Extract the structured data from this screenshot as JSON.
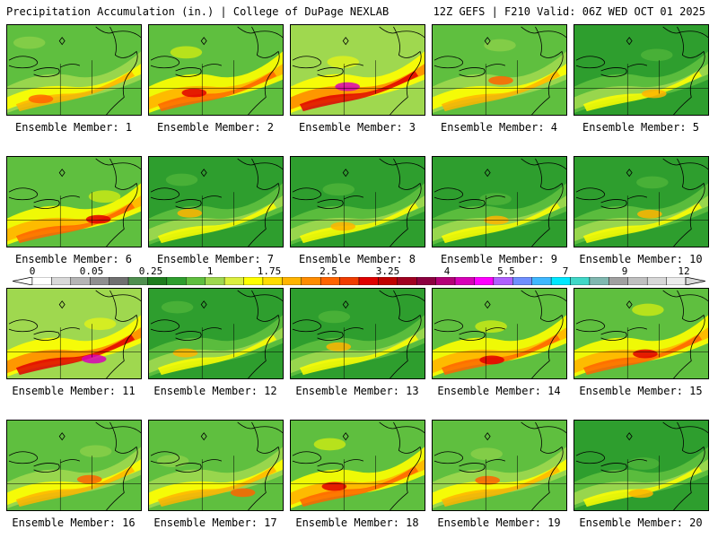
{
  "header": {
    "title": "Precipitation Accumulation (in.) | College of DuPage NEXLAB",
    "run_info": "12Z GEFS | F210 Valid: 06Z WED OCT 01 2025"
  },
  "members": [
    {
      "label": "Ensemble Member: 1",
      "scheme": "yellow"
    },
    {
      "label": "Ensemble Member: 2",
      "scheme": "orange"
    },
    {
      "label": "Ensemble Member: 3",
      "scheme": "heavy"
    },
    {
      "label": "Ensemble Member: 4",
      "scheme": "yellow"
    },
    {
      "label": "Ensemble Member: 5",
      "scheme": "green"
    },
    {
      "label": "Ensemble Member: 6",
      "scheme": "orange"
    },
    {
      "label": "Ensemble Member: 7",
      "scheme": "green"
    },
    {
      "label": "Ensemble Member: 8",
      "scheme": "green"
    },
    {
      "label": "Ensemble Member: 9",
      "scheme": "green"
    },
    {
      "label": "Ensemble Member: 10",
      "scheme": "green"
    },
    {
      "label": "Ensemble Member: 11",
      "scheme": "heavy"
    },
    {
      "label": "Ensemble Member: 12",
      "scheme": "green"
    },
    {
      "label": "Ensemble Member: 13",
      "scheme": "green"
    },
    {
      "label": "Ensemble Member: 14",
      "scheme": "orange"
    },
    {
      "label": "Ensemble Member: 15",
      "scheme": "orange"
    },
    {
      "label": "Ensemble Member: 16",
      "scheme": "yellow"
    },
    {
      "label": "Ensemble Member: 17",
      "scheme": "yellow"
    },
    {
      "label": "Ensemble Member: 18",
      "scheme": "orange"
    },
    {
      "label": "Ensemble Member: 19",
      "scheme": "yellow"
    },
    {
      "label": "Ensemble Member: 20",
      "scheme": "green"
    }
  ],
  "colorbar": {
    "ticks": [
      "0",
      "0.05",
      "0.25",
      "1",
      "1.75",
      "2.5",
      "3.25",
      "4",
      "5.5",
      "7",
      "9",
      "12"
    ],
    "colors": [
      "#ffffff",
      "#d9d9d9",
      "#b5b5b5",
      "#8f8f8f",
      "#707070",
      "#4f8f4f",
      "#1e7d1e",
      "#2e9e2e",
      "#5fbf3f",
      "#9fd84f",
      "#dcef3f",
      "#ffff00",
      "#ffdc00",
      "#ffb400",
      "#ff8c00",
      "#ff6400",
      "#f03c00",
      "#e00000",
      "#c00000",
      "#a00020",
      "#8c0040",
      "#b40078",
      "#d800b8",
      "#ff00ff",
      "#b060ff",
      "#6f8fff",
      "#3fb8ff",
      "#00e8ff",
      "#40d8c8",
      "#80b8b0",
      "#a0a0a0",
      "#c0c0c0",
      "#d8d8d8",
      "#ececec"
    ]
  }
}
